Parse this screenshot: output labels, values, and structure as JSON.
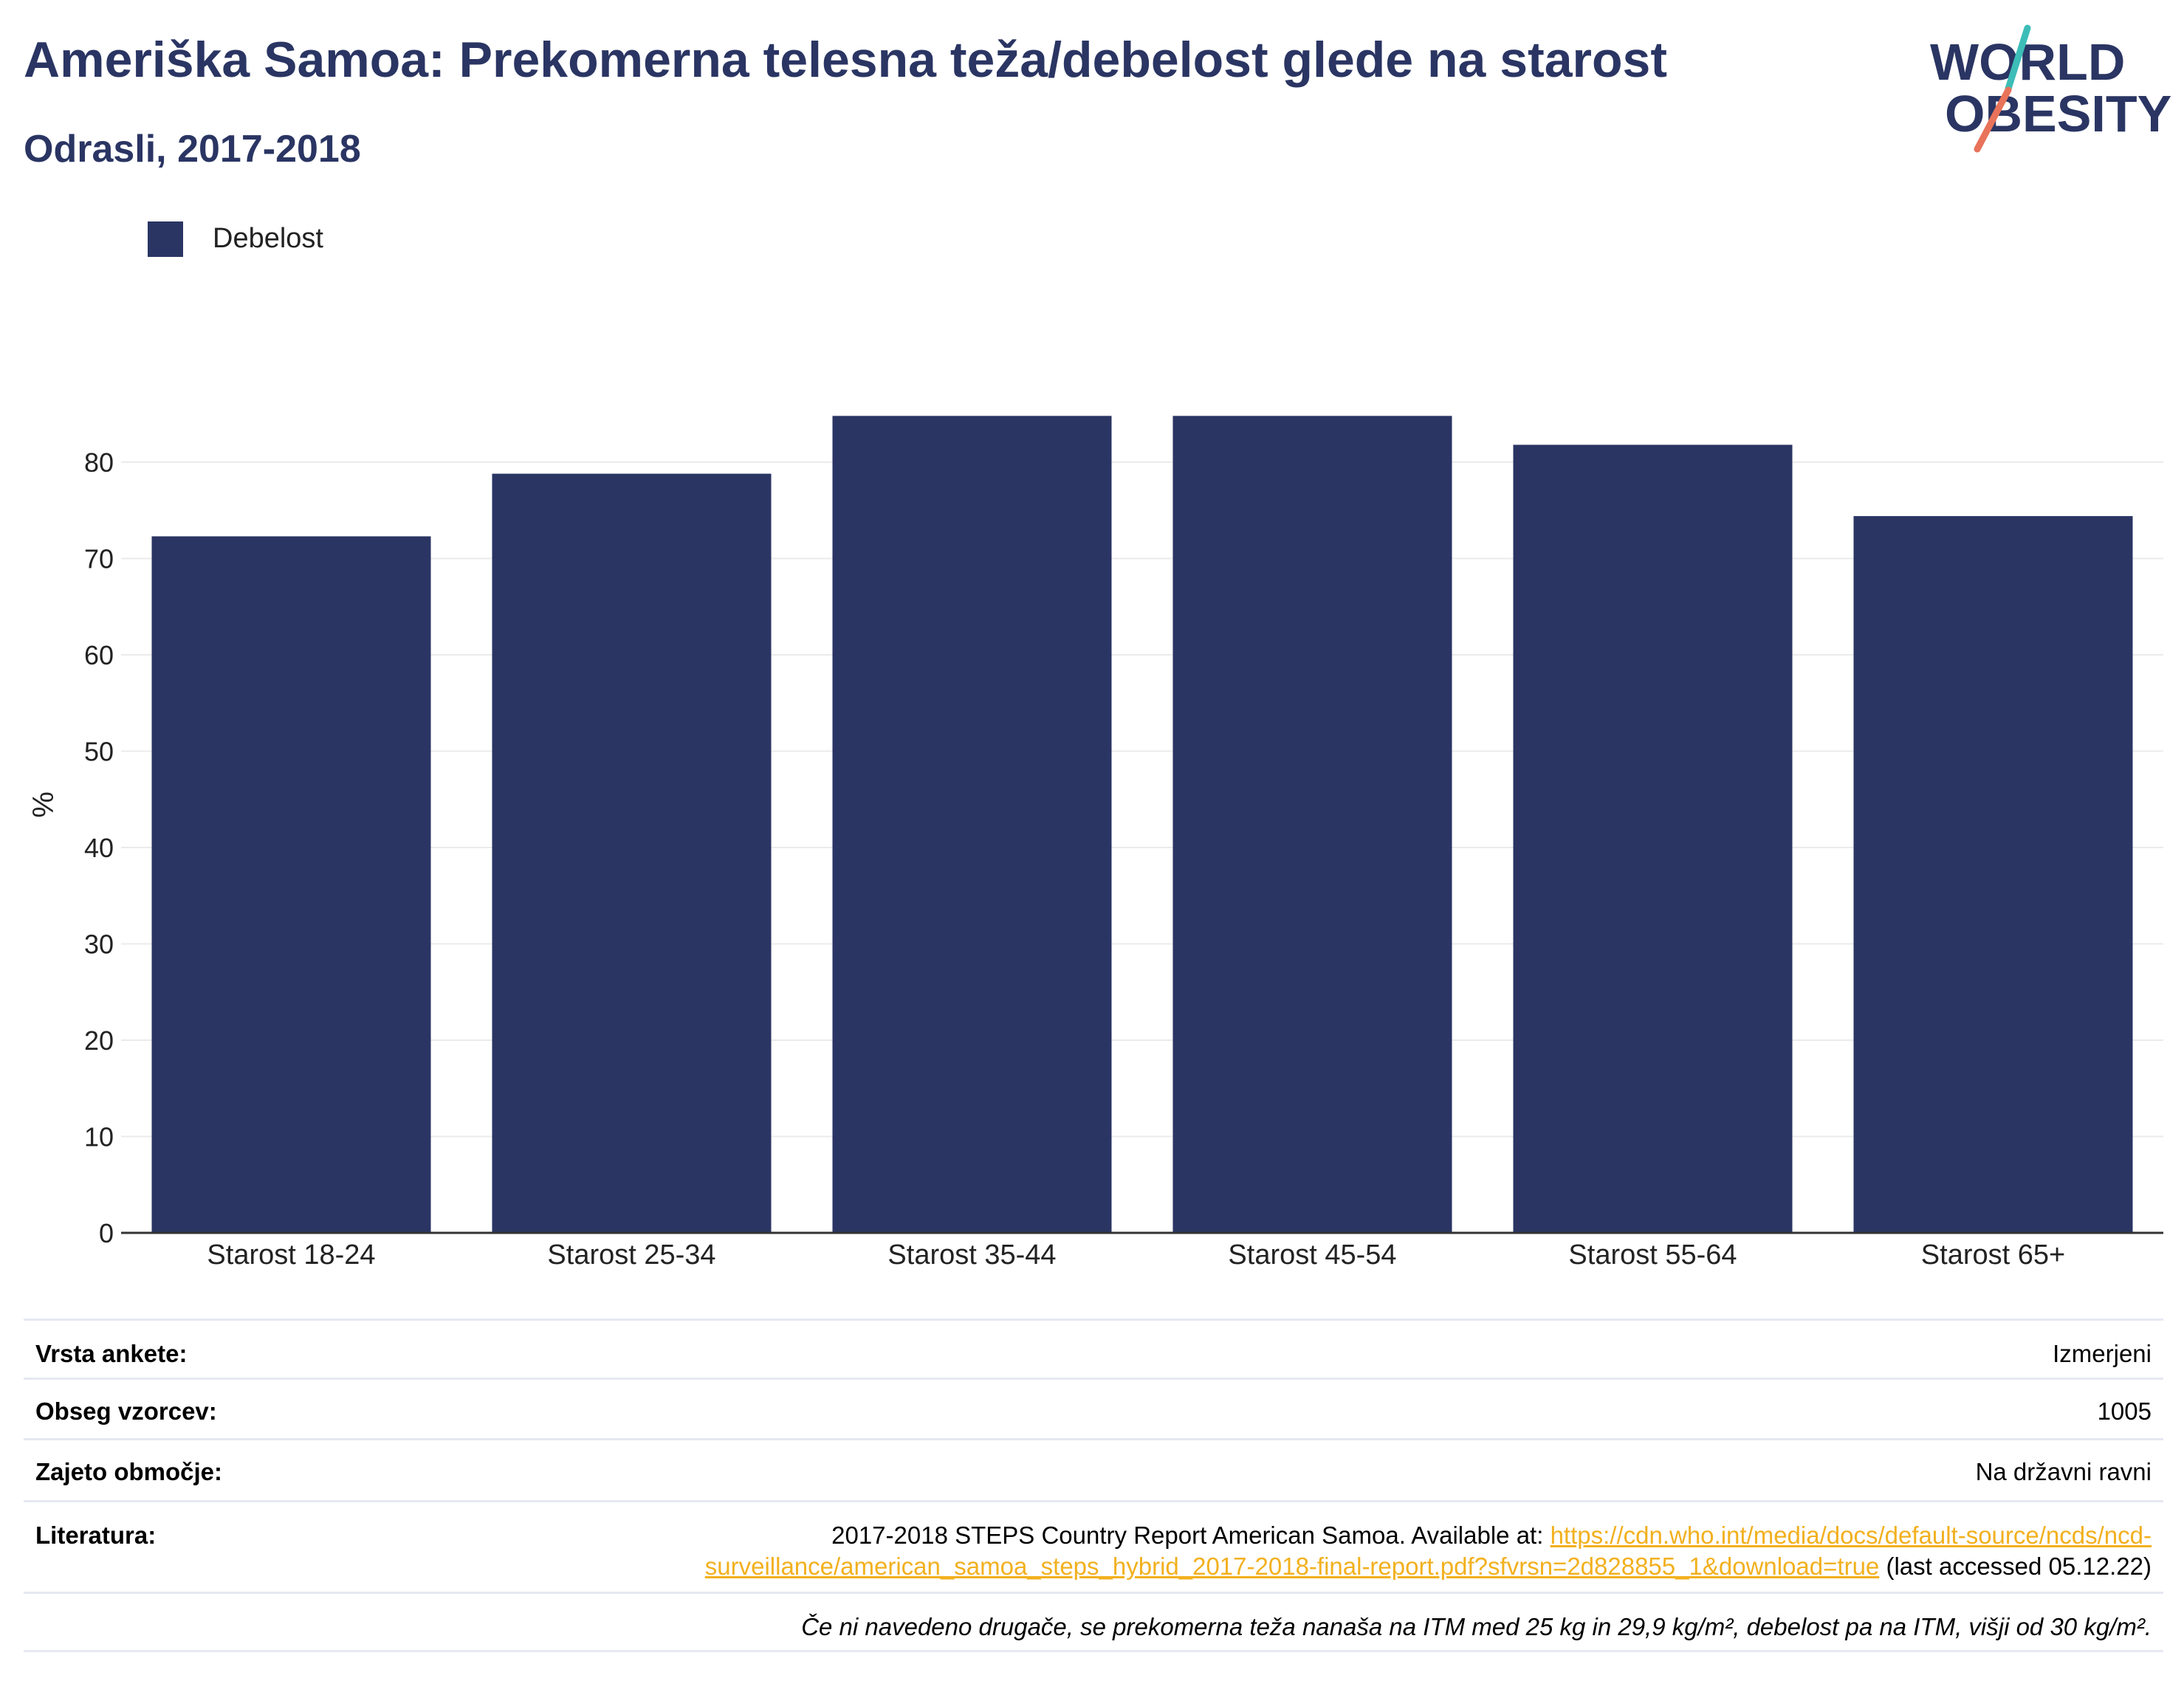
{
  "header": {
    "title": "Ameriška Samoa: Prekomerna telesna teža/debelost glede na starost",
    "subtitle": "Odrasli, 2017-2018"
  },
  "logo": {
    "line1": "WORLD",
    "line2": "OBESITY",
    "colors": {
      "navy": "#2a3563",
      "teal": "#3dbdb8",
      "coral": "#e8735a"
    }
  },
  "legend": {
    "label": "Debelost"
  },
  "colors": {
    "bar": "#2a3563",
    "grid": "#ebebeb",
    "axis": "#333333",
    "link": "#f2b01e"
  },
  "chart_data": {
    "type": "bar",
    "categories": [
      "Starost 18-24",
      "Starost 25-34",
      "Starost 35-44",
      "Starost 45-54",
      "Starost 55-64",
      "Starost 65+"
    ],
    "series": [
      {
        "name": "Debelost",
        "values": [
          72.3,
          78.8,
          84.8,
          84.8,
          81.8,
          74.4
        ]
      }
    ],
    "ylabel": "%",
    "ylim": [
      0,
      90
    ],
    "yticks": [
      0,
      10,
      20,
      30,
      40,
      50,
      60,
      70,
      80
    ],
    "grid": true,
    "legend_position": "top-left"
  },
  "meta": {
    "survey_type_label": "Vrsta ankete:",
    "survey_type_value": "Izmerjeni",
    "sample_size_label": "Obseg vzorcev:",
    "sample_size_value": "1005",
    "coverage_label": "Zajeto območje:",
    "coverage_value": "Na državni ravni",
    "references_label": "Literatura:",
    "references_prefix": "2017-2018 STEPS Country Report American Samoa. Available at: ",
    "references_link_1": "https://cdn.who.int/media/docs/default-source/ncds/ncd-",
    "references_link_2": "surveillance/american_samoa_steps_hybrid_2017-2018-final-report.pdf?sfvrsn=2d828855_1&download=true",
    "references_suffix": " (last accessed 05.12.22)",
    "note": "Če ni navedeno drugače, se prekomerna teža nanaša na ITM med 25 kg in 29,9 kg/m², debelost pa na ITM, višji od 30 kg/m²."
  }
}
